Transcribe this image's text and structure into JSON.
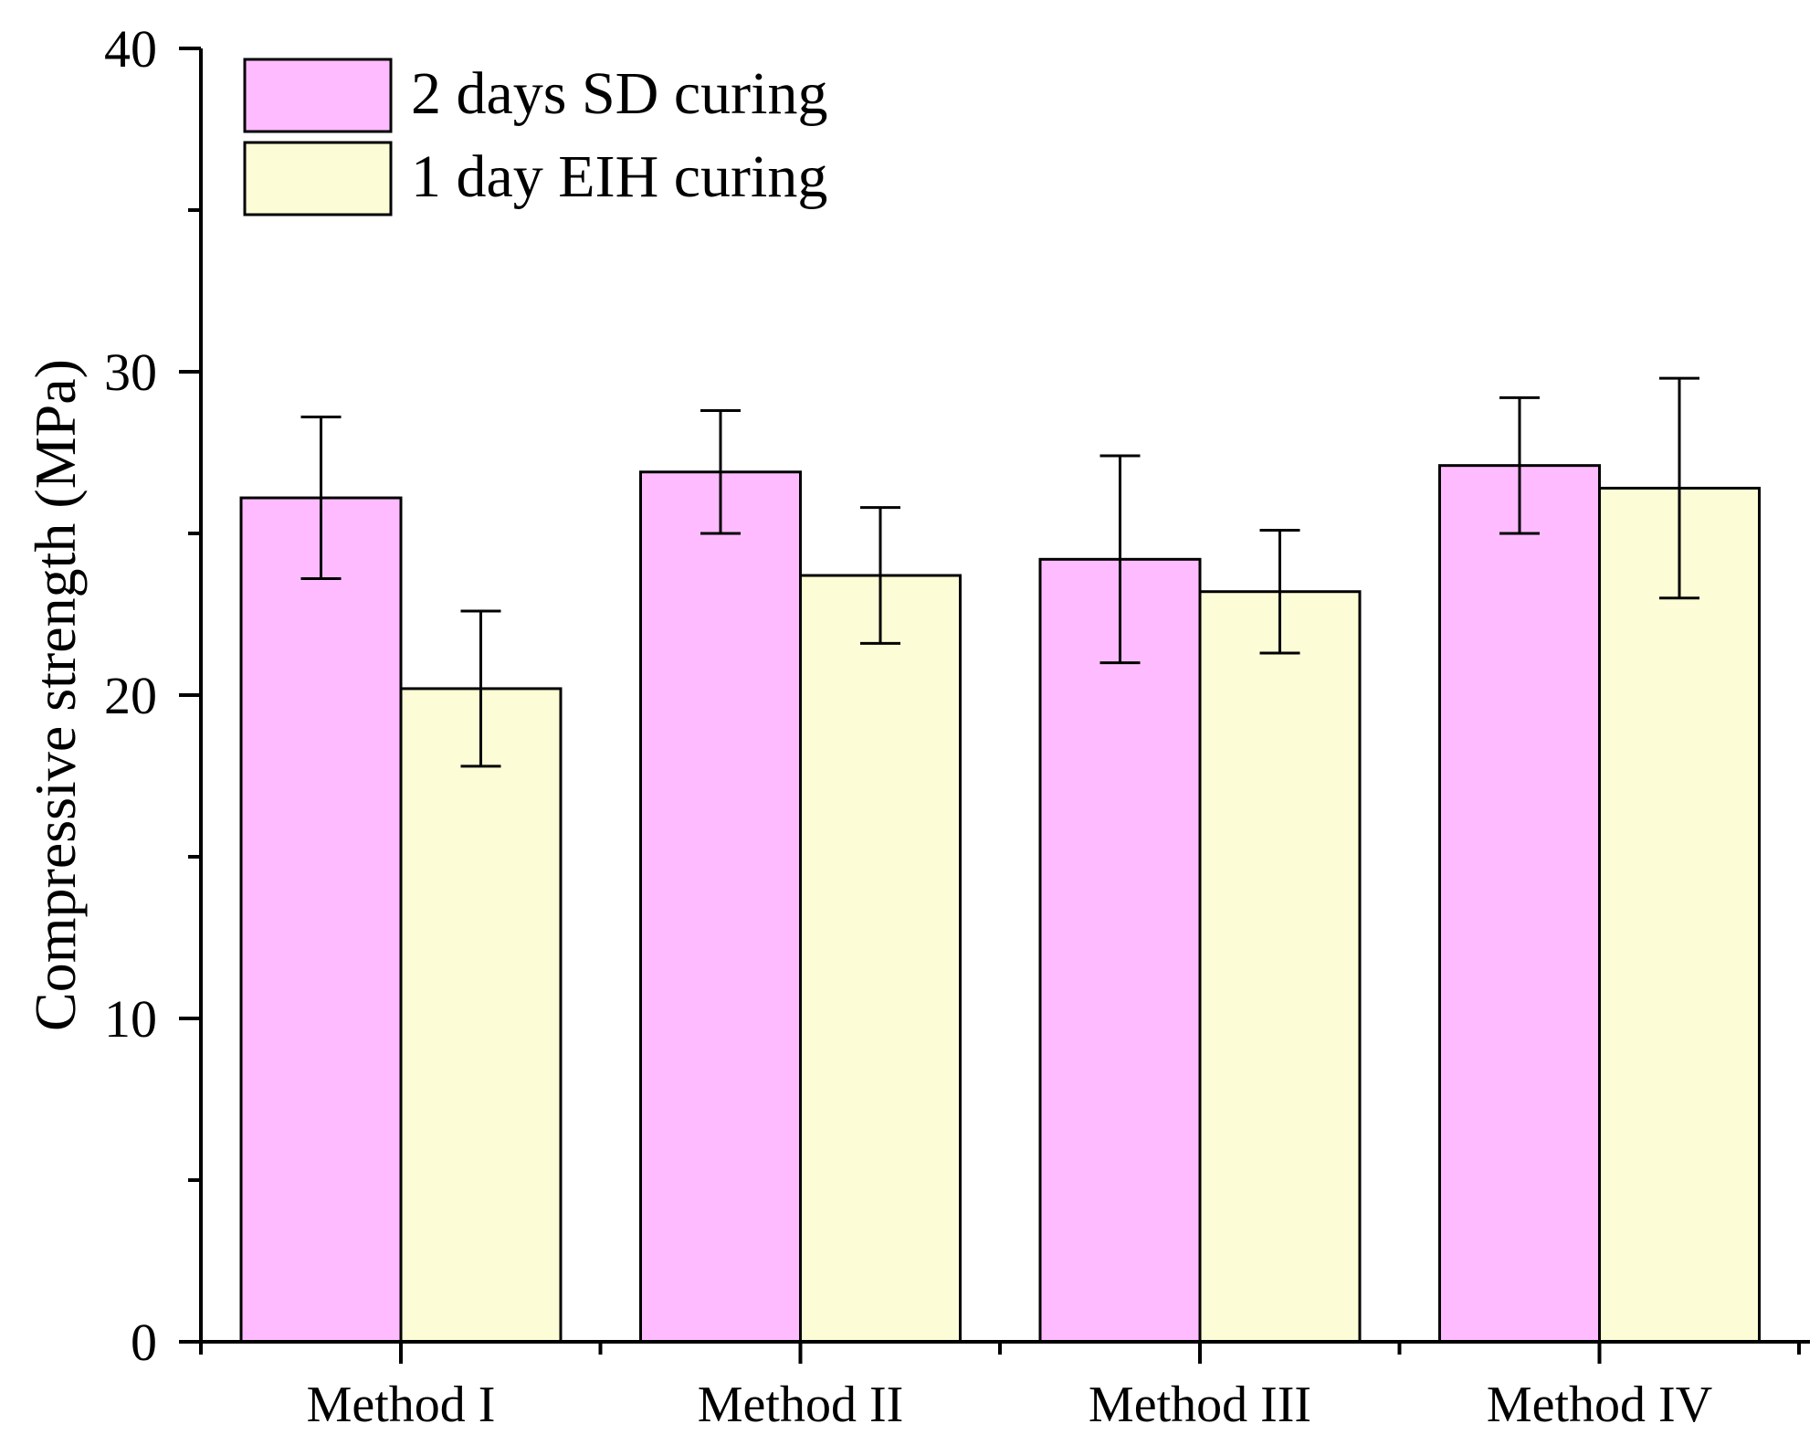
{
  "chart_data": {
    "type": "bar",
    "title": "",
    "xlabel": "",
    "ylabel": "Compressive strength (MPa)",
    "ylim": [
      0,
      40
    ],
    "yticks": [
      0,
      10,
      20,
      30,
      40
    ],
    "yminor_step": 5,
    "categories": [
      "Method I",
      "Method II",
      "Method III",
      "Method IV"
    ],
    "series": [
      {
        "name": "2 days SD curing",
        "color": "#ffbbff",
        "values": [
          26.1,
          26.9,
          24.2,
          27.1
        ],
        "errors": [
          2.5,
          1.9,
          3.2,
          2.1
        ]
      },
      {
        "name": "1 day EIH curing",
        "color": "#fcfcd6",
        "values": [
          20.2,
          23.7,
          23.2,
          26.4
        ],
        "errors": [
          2.4,
          2.1,
          1.9,
          3.4
        ]
      }
    ],
    "legend_position": "top-left",
    "grid": false
  }
}
